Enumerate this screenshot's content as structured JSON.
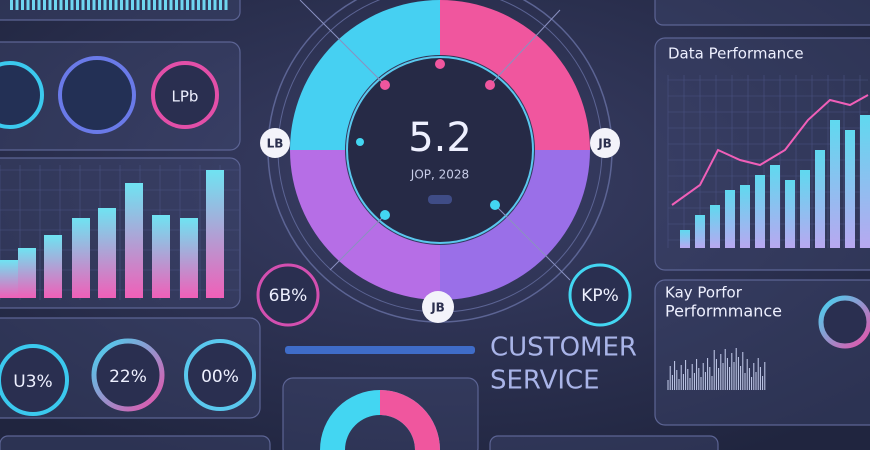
{
  "center_gauge": {
    "value": "5.2",
    "subtitle": "JOP, 2028",
    "badges": [
      "LB",
      "JB",
      "JB"
    ]
  },
  "data_performance": {
    "title": "Data Performance"
  },
  "kpi_panel": {
    "title_lines": [
      "Kay Porfor",
      "Performmance"
    ]
  },
  "customer_service": {
    "lines": [
      "CUSTOMER",
      "SERVICE"
    ]
  },
  "dials": {
    "top": [
      "LPb"
    ],
    "bottom": [
      "U3%",
      "22%",
      "00%"
    ]
  },
  "side_labels": [
    "6B%",
    "KP%"
  ]
}
